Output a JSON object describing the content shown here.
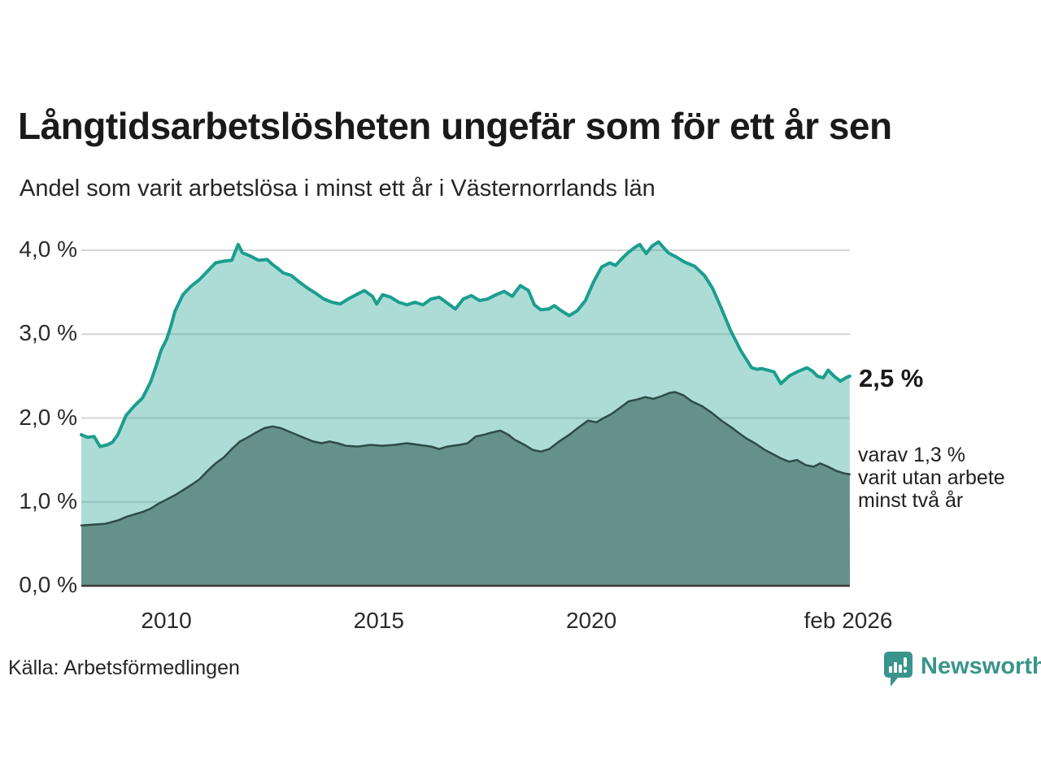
{
  "header": {
    "title": "Långtidsarbetslösheten ungefär som för ett år sen",
    "subtitle": "Andel som varit arbetslösa i minst ett år i Västernorrlands län"
  },
  "annotations": {
    "value_label": "2,5 %",
    "note": "varav 1,3 %\nvarit utan arbete\nminst två år"
  },
  "footer": {
    "source": "Källa: Arbetsförmedlingen",
    "brand": "Newsworthy"
  },
  "colors": {
    "line_one_year": "#1b9e8e",
    "fill_one_year": "#a9d9d2",
    "line_two_year": "#2e4b46",
    "fill_two_year": "#66918b",
    "gridline": "#d6d6d6",
    "axis": "#3a3a3a",
    "brand_teal": "#3a948c"
  },
  "chart_data": {
    "type": "area",
    "title": "Långtidsarbetslösheten ungefär som för ett år sen",
    "subtitle": "Andel som varit arbetslösa i minst ett år i Västernorrlands län",
    "xlabel": "",
    "ylabel": "",
    "x_range": [
      2008.0,
      2026.083
    ],
    "ylim": [
      0,
      4.35
    ],
    "grid_values": [
      1,
      2,
      3,
      4
    ],
    "y_ticks": [
      {
        "label": "4,0 %",
        "value": 4.0
      },
      {
        "label": "3,0 %",
        "value": 3.0
      },
      {
        "label": "2,0 %",
        "value": 2.0
      },
      {
        "label": "1,0 %",
        "value": 1.0
      },
      {
        "label": "0,0 %",
        "value": 0.0
      }
    ],
    "x_ticks": [
      {
        "label": "2010",
        "year": 2010
      },
      {
        "label": "2015",
        "year": 2015
      },
      {
        "label": "2020",
        "year": 2020
      },
      {
        "label": "feb 2026",
        "year": 2026.05
      }
    ],
    "series": [
      {
        "name": "Andel som varit arbetslösa i minst ett år",
        "end_value_label": "2,5 %",
        "line_color": "#1b9e8e",
        "fill_color": "#1b9e8e",
        "fill_opacity": 0.36,
        "line_width": 4,
        "points": [
          [
            2008.0,
            1.8
          ],
          [
            2008.15,
            1.77
          ],
          [
            2008.3,
            1.78
          ],
          [
            2008.44,
            1.66
          ],
          [
            2008.61,
            1.68
          ],
          [
            2008.73,
            1.71
          ],
          [
            2008.86,
            1.8
          ],
          [
            2009.05,
            2.03
          ],
          [
            2009.24,
            2.14
          ],
          [
            2009.44,
            2.24
          ],
          [
            2009.63,
            2.43
          ],
          [
            2009.76,
            2.62
          ],
          [
            2009.88,
            2.81
          ],
          [
            2010.01,
            2.94
          ],
          [
            2010.11,
            3.1
          ],
          [
            2010.2,
            3.27
          ],
          [
            2010.39,
            3.47
          ],
          [
            2010.58,
            3.57
          ],
          [
            2010.78,
            3.65
          ],
          [
            2010.97,
            3.75
          ],
          [
            2011.16,
            3.85
          ],
          [
            2011.35,
            3.87
          ],
          [
            2011.54,
            3.88
          ],
          [
            2011.69,
            4.07
          ],
          [
            2011.79,
            3.97
          ],
          [
            2011.98,
            3.93
          ],
          [
            2012.17,
            3.88
          ],
          [
            2012.37,
            3.89
          ],
          [
            2012.5,
            3.83
          ],
          [
            2012.63,
            3.78
          ],
          [
            2012.75,
            3.73
          ],
          [
            2012.94,
            3.7
          ],
          [
            2013.13,
            3.62
          ],
          [
            2013.32,
            3.55
          ],
          [
            2013.51,
            3.49
          ],
          [
            2013.7,
            3.42
          ],
          [
            2013.9,
            3.38
          ],
          [
            2014.09,
            3.36
          ],
          [
            2014.28,
            3.42
          ],
          [
            2014.47,
            3.47
          ],
          [
            2014.66,
            3.52
          ],
          [
            2014.85,
            3.45
          ],
          [
            2014.95,
            3.36
          ],
          [
            2015.09,
            3.47
          ],
          [
            2015.28,
            3.44
          ],
          [
            2015.47,
            3.38
          ],
          [
            2015.66,
            3.35
          ],
          [
            2015.85,
            3.38
          ],
          [
            2016.04,
            3.35
          ],
          [
            2016.23,
            3.42
          ],
          [
            2016.42,
            3.44
          ],
          [
            2016.61,
            3.37
          ],
          [
            2016.8,
            3.3
          ],
          [
            2016.99,
            3.42
          ],
          [
            2017.18,
            3.46
          ],
          [
            2017.37,
            3.4
          ],
          [
            2017.56,
            3.42
          ],
          [
            2017.76,
            3.47
          ],
          [
            2017.95,
            3.51
          ],
          [
            2018.14,
            3.45
          ],
          [
            2018.33,
            3.58
          ],
          [
            2018.52,
            3.52
          ],
          [
            2018.66,
            3.35
          ],
          [
            2018.81,
            3.29
          ],
          [
            2019.0,
            3.3
          ],
          [
            2019.13,
            3.34
          ],
          [
            2019.29,
            3.28
          ],
          [
            2019.48,
            3.22
          ],
          [
            2019.67,
            3.28
          ],
          [
            2019.86,
            3.4
          ],
          [
            2020.05,
            3.62
          ],
          [
            2020.24,
            3.8
          ],
          [
            2020.43,
            3.85
          ],
          [
            2020.57,
            3.82
          ],
          [
            2020.72,
            3.9
          ],
          [
            2020.86,
            3.97
          ],
          [
            2021.01,
            4.03
          ],
          [
            2021.14,
            4.07
          ],
          [
            2021.29,
            3.96
          ],
          [
            2021.43,
            4.05
          ],
          [
            2021.58,
            4.1
          ],
          [
            2021.72,
            4.02
          ],
          [
            2021.81,
            3.97
          ],
          [
            2022.0,
            3.92
          ],
          [
            2022.19,
            3.86
          ],
          [
            2022.43,
            3.81
          ],
          [
            2022.66,
            3.7
          ],
          [
            2022.85,
            3.55
          ],
          [
            2023.04,
            3.33
          ],
          [
            2023.27,
            3.05
          ],
          [
            2023.52,
            2.8
          ],
          [
            2023.77,
            2.6
          ],
          [
            2023.9,
            2.58
          ],
          [
            2024.0,
            2.59
          ],
          [
            2024.15,
            2.57
          ],
          [
            2024.3,
            2.55
          ],
          [
            2024.46,
            2.41
          ],
          [
            2024.65,
            2.5
          ],
          [
            2024.84,
            2.55
          ],
          [
            2025.07,
            2.6
          ],
          [
            2025.2,
            2.56
          ],
          [
            2025.32,
            2.5
          ],
          [
            2025.46,
            2.48
          ],
          [
            2025.57,
            2.57
          ],
          [
            2025.71,
            2.5
          ],
          [
            2025.86,
            2.44
          ],
          [
            2025.99,
            2.48
          ],
          [
            2026.08,
            2.5
          ]
        ]
      },
      {
        "name": "varav utan arbete minst två år",
        "end_value_label": "1,3 %",
        "line_color": "#2e4b46",
        "fill_color": "#66918b",
        "fill_opacity": 1,
        "line_width": 2.5,
        "points": [
          [
            2008.0,
            0.72
          ],
          [
            2008.29,
            0.73
          ],
          [
            2008.57,
            0.74
          ],
          [
            2008.86,
            0.78
          ],
          [
            2009.05,
            0.82
          ],
          [
            2009.24,
            0.85
          ],
          [
            2009.44,
            0.88
          ],
          [
            2009.63,
            0.92
          ],
          [
            2009.82,
            0.98
          ],
          [
            2010.01,
            1.03
          ],
          [
            2010.2,
            1.08
          ],
          [
            2010.39,
            1.14
          ],
          [
            2010.58,
            1.2
          ],
          [
            2010.78,
            1.27
          ],
          [
            2010.97,
            1.37
          ],
          [
            2011.16,
            1.46
          ],
          [
            2011.35,
            1.53
          ],
          [
            2011.54,
            1.63
          ],
          [
            2011.73,
            1.72
          ],
          [
            2011.92,
            1.77
          ],
          [
            2012.12,
            1.83
          ],
          [
            2012.31,
            1.88
          ],
          [
            2012.5,
            1.9
          ],
          [
            2012.69,
            1.88
          ],
          [
            2012.88,
            1.84
          ],
          [
            2013.07,
            1.8
          ],
          [
            2013.26,
            1.76
          ],
          [
            2013.46,
            1.72
          ],
          [
            2013.65,
            1.7
          ],
          [
            2013.84,
            1.72
          ],
          [
            2014.03,
            1.7
          ],
          [
            2014.22,
            1.67
          ],
          [
            2014.51,
            1.66
          ],
          [
            2014.8,
            1.68
          ],
          [
            2015.08,
            1.67
          ],
          [
            2015.37,
            1.68
          ],
          [
            2015.66,
            1.7
          ],
          [
            2015.94,
            1.68
          ],
          [
            2016.23,
            1.66
          ],
          [
            2016.42,
            1.63
          ],
          [
            2016.61,
            1.66
          ],
          [
            2016.9,
            1.68
          ],
          [
            2017.09,
            1.7
          ],
          [
            2017.28,
            1.78
          ],
          [
            2017.47,
            1.8
          ],
          [
            2017.67,
            1.83
          ],
          [
            2017.86,
            1.85
          ],
          [
            2018.05,
            1.8
          ],
          [
            2018.2,
            1.74
          ],
          [
            2018.43,
            1.68
          ],
          [
            2018.62,
            1.62
          ],
          [
            2018.81,
            1.6
          ],
          [
            2019.01,
            1.63
          ],
          [
            2019.24,
            1.72
          ],
          [
            2019.48,
            1.8
          ],
          [
            2019.68,
            1.88
          ],
          [
            2019.92,
            1.97
          ],
          [
            2020.12,
            1.95
          ],
          [
            2020.29,
            2.0
          ],
          [
            2020.48,
            2.05
          ],
          [
            2020.67,
            2.12
          ],
          [
            2020.88,
            2.2
          ],
          [
            2021.07,
            2.22
          ],
          [
            2021.27,
            2.25
          ],
          [
            2021.46,
            2.23
          ],
          [
            2021.65,
            2.26
          ],
          [
            2021.84,
            2.3
          ],
          [
            2021.97,
            2.31
          ],
          [
            2022.17,
            2.27
          ],
          [
            2022.36,
            2.2
          ],
          [
            2022.61,
            2.14
          ],
          [
            2022.84,
            2.06
          ],
          [
            2023.06,
            1.97
          ],
          [
            2023.26,
            1.9
          ],
          [
            2023.45,
            1.83
          ],
          [
            2023.64,
            1.76
          ],
          [
            2023.85,
            1.7
          ],
          [
            2024.08,
            1.62
          ],
          [
            2024.27,
            1.57
          ],
          [
            2024.46,
            1.52
          ],
          [
            2024.65,
            1.48
          ],
          [
            2024.84,
            1.5
          ],
          [
            2025.04,
            1.44
          ],
          [
            2025.23,
            1.42
          ],
          [
            2025.38,
            1.46
          ],
          [
            2025.57,
            1.42
          ],
          [
            2025.76,
            1.37
          ],
          [
            2025.95,
            1.34
          ],
          [
            2026.08,
            1.33
          ]
        ]
      }
    ],
    "legend_position": "none",
    "grid": true
  }
}
